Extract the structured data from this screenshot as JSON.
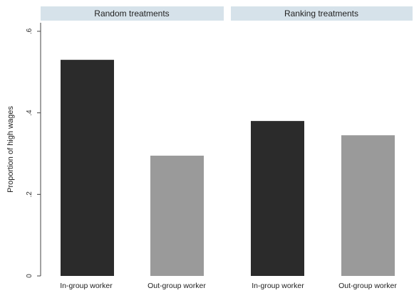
{
  "chart_data": {
    "type": "bar",
    "ylabel": "Proportion of high wages",
    "ylim": [
      0,
      0.6
    ],
    "yticks": [
      0,
      0.2,
      0.4,
      0.6
    ],
    "ytick_labels": [
      "0",
      ".2",
      ".4",
      ".6"
    ],
    "grid": false,
    "panels": [
      {
        "title": "Random treatments",
        "categories": [
          "In-group worker",
          "Out-group worker"
        ],
        "values": [
          0.53,
          0.295
        ],
        "colors": [
          "#2b2b2b",
          "#9a9a9a"
        ]
      },
      {
        "title": "Ranking treatments",
        "categories": [
          "In-group worker",
          "Out-group worker"
        ],
        "values": [
          0.38,
          0.345
        ],
        "colors": [
          "#2b2b2b",
          "#9a9a9a"
        ]
      }
    ]
  }
}
